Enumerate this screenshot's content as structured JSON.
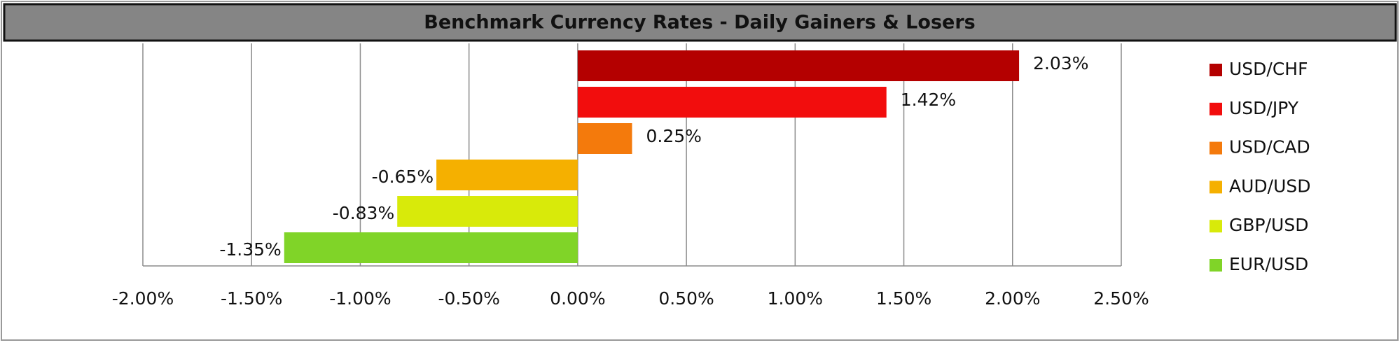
{
  "chart_data": {
    "type": "hbar",
    "title": "Benchmark Currency Rates - Daily Gainers & Losers",
    "categories": [
      "USD/CHF",
      "USD/JPY",
      "USD/CAD",
      "AUD/USD",
      "GBP/USD",
      "EUR/USD"
    ],
    "values": [
      2.03,
      1.42,
      0.25,
      -0.65,
      -0.83,
      -1.35
    ],
    "value_labels": [
      "2.03%",
      "1.42%",
      "0.25%",
      "-0.65%",
      "-0.83%",
      "-1.35%"
    ],
    "colors": [
      "#b40000",
      "#f20d0d",
      "#f47a0c",
      "#f5b000",
      "#d8ea0a",
      "#80d428"
    ],
    "xlim": [
      -2,
      2.5
    ],
    "xticks": [
      {
        "value": -2,
        "label": "-2.00%"
      },
      {
        "value": -1.5,
        "label": "-1.50%"
      },
      {
        "value": -1,
        "label": "-1.00%"
      },
      {
        "value": -0.5,
        "label": "-0.50%"
      },
      {
        "value": 0,
        "label": "0.00%"
      },
      {
        "value": 0.5,
        "label": "0.50%"
      },
      {
        "value": 1,
        "label": "1.00%"
      },
      {
        "value": 1.5,
        "label": "1.50%"
      },
      {
        "value": 2,
        "label": "2.00%"
      },
      {
        "value": 2.5,
        "label": "2.50%"
      }
    ],
    "grid": true,
    "legend": "right"
  }
}
